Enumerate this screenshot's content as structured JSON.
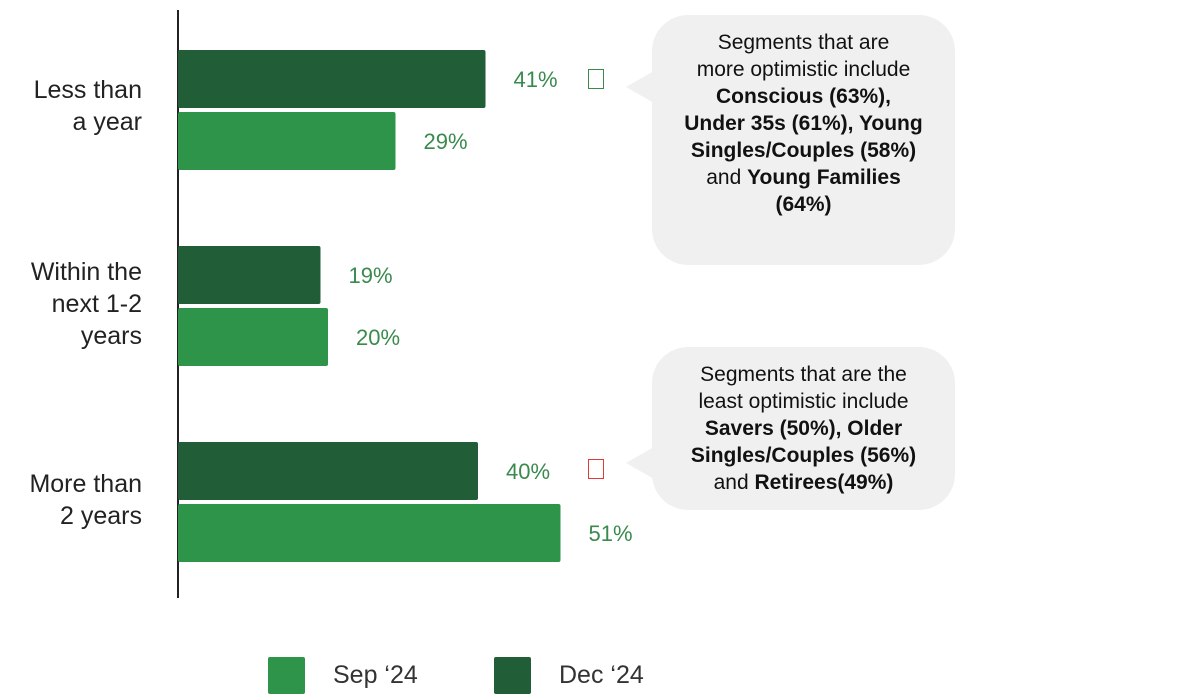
{
  "chart_data": {
    "type": "bar",
    "orientation": "horizontal",
    "categories": [
      "Less than\na year",
      "Within the\nnext 1-2\nyears",
      "More than\n2 years"
    ],
    "series": [
      {
        "name": "Dec ‘24",
        "values": [
          41,
          19,
          40
        ],
        "color": "#215e37"
      },
      {
        "name": "Sep ‘24",
        "values": [
          29,
          20,
          51
        ],
        "color": "#2e9449"
      }
    ],
    "value_suffix": "%",
    "label_color": "#3a8a4e",
    "grid": false,
    "legend_position": "bottom",
    "legend": [
      {
        "label": "Sep ‘24",
        "color": "#2e9449"
      },
      {
        "label": "Dec ‘24",
        "color": "#215e37"
      }
    ]
  },
  "callouts": [
    {
      "lines": [
        [
          {
            "text": "Segments that are",
            "bold": false
          }
        ],
        [
          {
            "text": "more optimistic include",
            "bold": false
          }
        ],
        [
          {
            "text": "Conscious (63%),",
            "bold": true
          }
        ],
        [
          {
            "text": "Under 35s (61%), Young",
            "bold": true
          }
        ],
        [
          {
            "text": "Singles/Couples (58%)",
            "bold": true
          }
        ],
        [
          {
            "text": "and ",
            "bold": false
          },
          {
            "text": "Young Families",
            "bold": true
          }
        ],
        [
          {
            "text": "(64%)",
            "bold": true
          }
        ]
      ],
      "marker_color": "#3a8a4e"
    },
    {
      "lines": [
        [
          {
            "text": "Segments that are the",
            "bold": false
          }
        ],
        [
          {
            "text": "least optimistic include",
            "bold": false
          }
        ],
        [
          {
            "text": "Savers (50%), Older",
            "bold": true
          }
        ],
        [
          {
            "text": "Singles/Couples (56%)",
            "bold": true
          }
        ],
        [
          {
            "text": "and ",
            "bold": false
          },
          {
            "text": "Retirees(49%)",
            "bold": true
          }
        ]
      ],
      "marker_color": "#e03a3a"
    }
  ]
}
